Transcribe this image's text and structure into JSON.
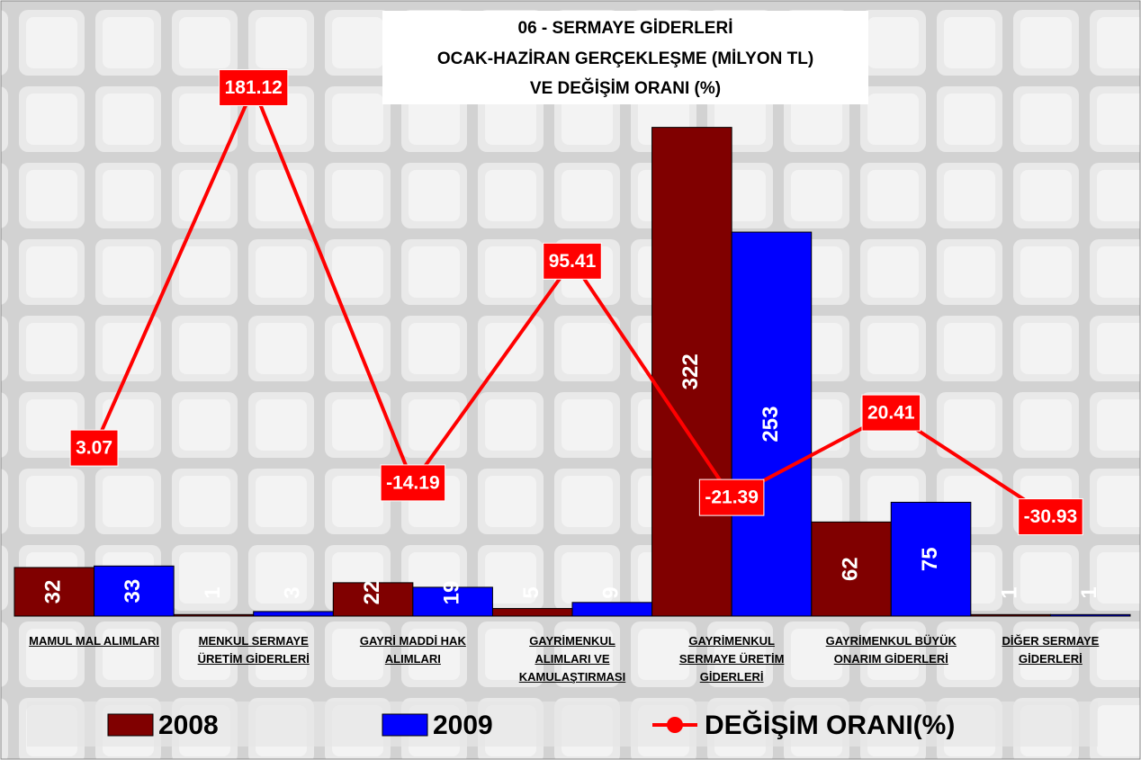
{
  "chart_data": {
    "type": "bar-line",
    "title": [
      "06 - SERMAYE GİDERLERİ",
      "OCAK-HAZİRAN GERÇEKLEŞME (MİLYON TL)",
      "VE DEĞİŞİM ORANI (%)"
    ],
    "categories": [
      "MAMUL MAL ALIMLARI",
      "MENKUL SERMAYE ÜRETİM GİDERLERİ",
      "GAYRİ MADDİ HAK ALIMLARI",
      "GAYRİMENKUL ALIMLARI VE KAMULAŞTIRMASI",
      "GAYRİMENKUL SERMAYE ÜRETİM GİDERLERİ",
      "GAYRİMENKUL BÜYÜK ONARIM GİDERLERİ",
      "DİĞER SERMAYE GİDERLERİ"
    ],
    "series": [
      {
        "name": "2008",
        "color": "#800000",
        "type": "bar",
        "values": [
          32,
          1,
          22,
          5,
          322,
          62,
          1
        ]
      },
      {
        "name": "2009",
        "color": "#0000ff",
        "type": "bar",
        "values": [
          33,
          3,
          19,
          9,
          253,
          75,
          1
        ]
      },
      {
        "name": "DEĞİŞİM ORANI(%)",
        "color": "#ff0000",
        "type": "line",
        "axis": "y2",
        "values": [
          3.07,
          181.12,
          -14.19,
          95.41,
          -21.39,
          20.41,
          -30.93
        ]
      }
    ],
    "ylim": [
      0,
      400
    ],
    "y2lim": [
      -80,
      220
    ],
    "legend": "bottom"
  }
}
